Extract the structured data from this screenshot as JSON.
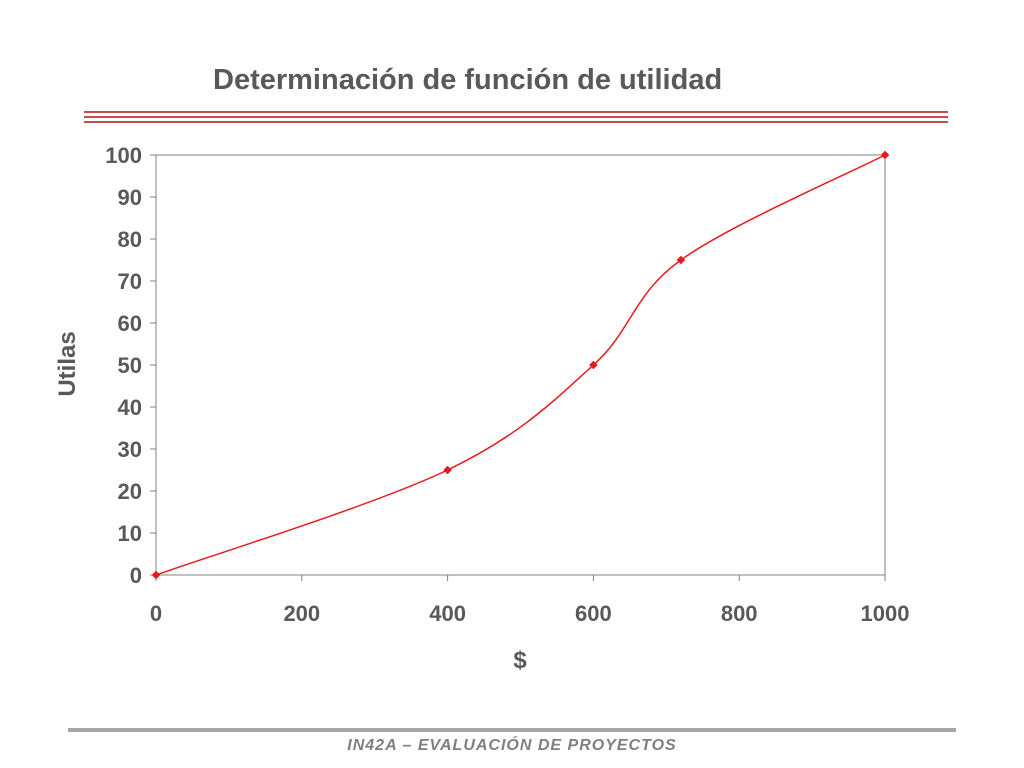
{
  "slide": {
    "title": "Determinación de función de utilidad",
    "footer": "IN42A – EVALUACIÓN DE PROYECTOS"
  },
  "colors": {
    "series": "#e8191e",
    "title_rule": "#c0504d",
    "axis_text": "#595959",
    "footer_rule": "#a6a6a6"
  },
  "chart_data": {
    "type": "scatter",
    "xlabel": "$",
    "ylabel": "Utilas",
    "xlim": [
      0,
      1000
    ],
    "ylim": [
      0,
      100
    ],
    "xticks": [
      0,
      200,
      400,
      600,
      800,
      1000
    ],
    "yticks": [
      0,
      10,
      20,
      30,
      40,
      50,
      60,
      70,
      80,
      90,
      100
    ],
    "grid": false,
    "legend": "none",
    "series": [
      {
        "points": [
          {
            "x": 0,
            "y": 0
          },
          {
            "x": 400,
            "y": 25
          },
          {
            "x": 600,
            "y": 50
          },
          {
            "x": 720,
            "y": 75
          },
          {
            "x": 1000,
            "y": 100
          }
        ],
        "line": "smooth",
        "marker": "diamond"
      }
    ]
  }
}
